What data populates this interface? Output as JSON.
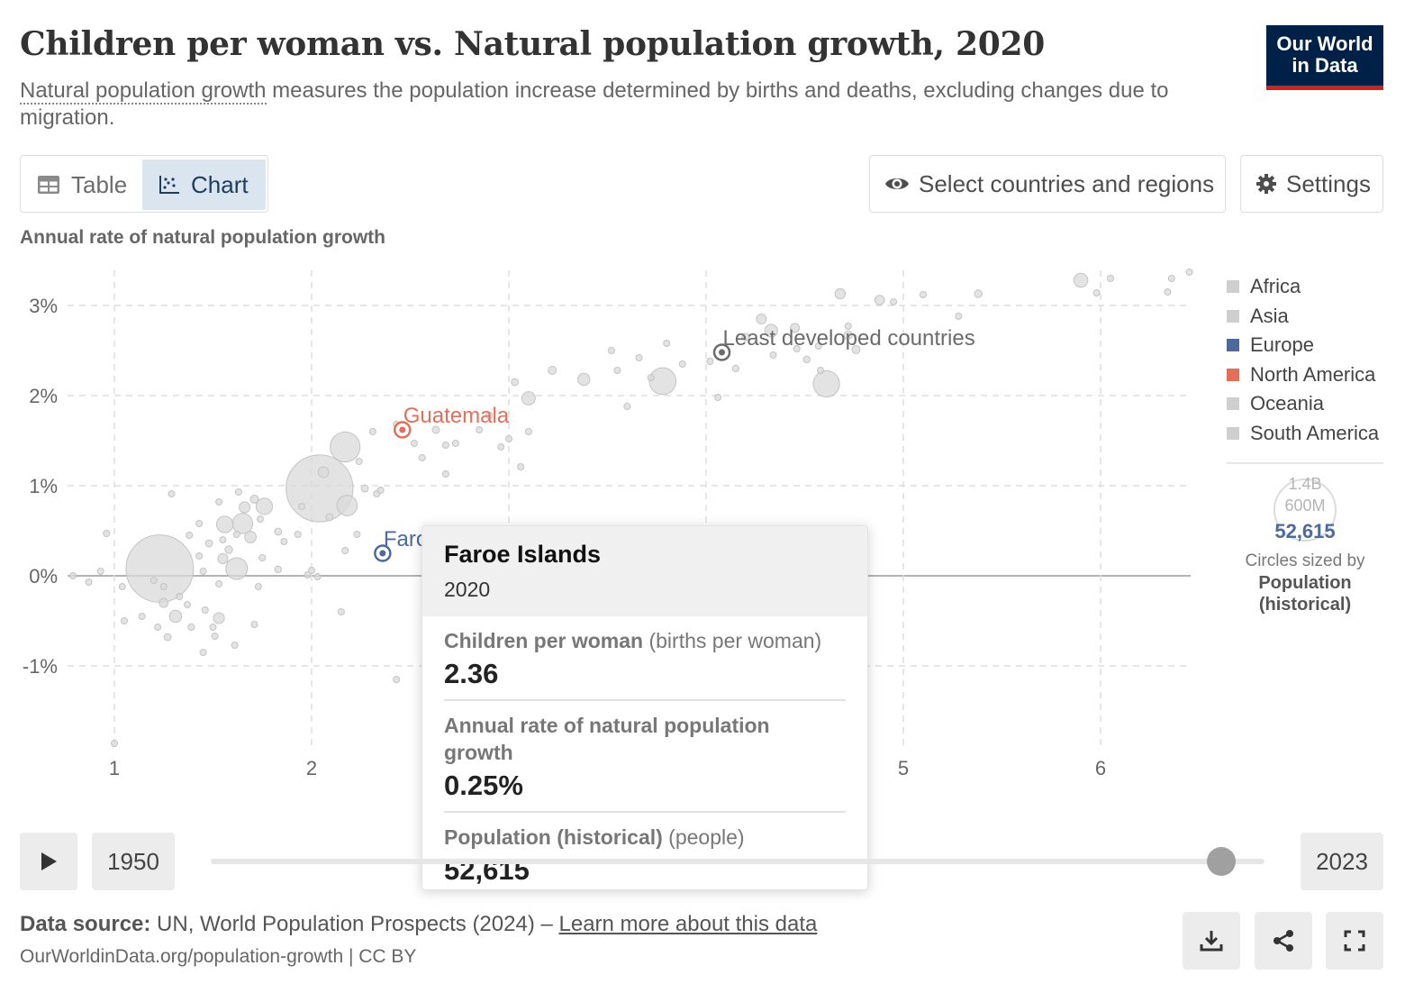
{
  "header": {
    "title": "Children per woman vs. Natural population growth, 2020",
    "subtitle_term": "Natural population growth",
    "subtitle_rest": " measures the population increase determined by births and deaths, excluding changes due to migration.",
    "logo_line1": "Our World",
    "logo_line2": "in Data"
  },
  "controls": {
    "tab_table": "Table",
    "tab_chart": "Chart",
    "select_button": "Select countries and regions",
    "settings_button": "Settings"
  },
  "legend": {
    "items": [
      {
        "label": "Africa",
        "color": "#cfcfcf"
      },
      {
        "label": "Asia",
        "color": "#cfcfcf"
      },
      {
        "label": "Europe",
        "color": "#4c6a9c"
      },
      {
        "label": "North America",
        "color": "#e56e5a"
      },
      {
        "label": "Oceania",
        "color": "#cfcfcf"
      },
      {
        "label": "South America",
        "color": "#cfcfcf"
      }
    ],
    "size_label_big": "1.4B",
    "size_label_small": "600M",
    "size_highlight": "52,615",
    "size_note": "Circles sized by",
    "size_variable": "Population (historical)"
  },
  "tooltip": {
    "entity": "Faroe Islands",
    "year": "2020",
    "rows": [
      {
        "name": "Children per woman",
        "unit": " (births per woman)",
        "value": "2.36"
      },
      {
        "name": "Annual rate of natural population growth",
        "unit": "",
        "value": "0.25%"
      },
      {
        "name": "Population (historical)",
        "unit": " (people)",
        "value": "52,615"
      }
    ]
  },
  "timeline": {
    "start_year": "1950",
    "end_year": "2023",
    "position": 1.0
  },
  "footer": {
    "source_label": "Data source:",
    "source_text": " UN, World Population Prospects (2024) – ",
    "source_link": "Learn more about this data",
    "url": "OurWorldinData.org/population-growth | CC BY"
  },
  "chart_data": {
    "type": "scatter",
    "title": "Children per woman vs. Natural population growth, 2020",
    "xlabel": "",
    "ylabel": "Annual rate of natural population growth",
    "xlim": [
      0.75,
      6.5
    ],
    "ylim": [
      -1.9,
      3.4
    ],
    "x_ticks": [
      "1",
      "2",
      "5",
      "6"
    ],
    "x_tick_values": [
      1,
      2,
      5,
      6
    ],
    "y_ticks": [
      "3%",
      "2%",
      "1%",
      "0%",
      "-1%"
    ],
    "y_tick_values": [
      3,
      2,
      1,
      0,
      -1
    ],
    "grid": true,
    "legend_position": "right",
    "highlighted": [
      {
        "label": "Guatemala",
        "x": 2.46,
        "y": 1.62,
        "color": "#e56e5a"
      },
      {
        "label": "Least developed countries",
        "x": 4.08,
        "y": 2.48,
        "color": "#6b6b6b"
      },
      {
        "label": "Faro",
        "x": 2.36,
        "y": 0.25,
        "color": "#4c6a9c"
      }
    ],
    "points": [
      [
        1.23,
        0.08,
        1400
      ],
      [
        2.04,
        0.97,
        1380
      ],
      [
        1.62,
        0.08,
        145
      ],
      [
        1.56,
        0.57,
        84
      ],
      [
        2.18,
        0.78,
        128
      ],
      [
        1.76,
        0.77,
        83
      ],
      [
        1.65,
        0.58,
        126
      ],
      [
        2.17,
        1.43,
        275
      ],
      [
        4.61,
        2.13,
        213
      ],
      [
        3.78,
        2.16,
        220
      ],
      [
        1.53,
        -0.47,
        37
      ],
      [
        1.31,
        -0.45,
        45
      ],
      [
        1.25,
        -0.3,
        25
      ],
      [
        1.69,
        0.43,
        40
      ],
      [
        1.66,
        0.76,
        36
      ],
      [
        1.55,
        0.19,
        31
      ],
      [
        5.9,
        3.28,
        60
      ],
      [
        2.06,
        1.15,
        35
      ],
      [
        1.71,
        0.85,
        20
      ],
      [
        1.48,
        0.36,
        16
      ],
      [
        1.58,
        0.29,
        18
      ],
      [
        2.73,
        1.47,
        12
      ],
      [
        3.38,
        2.18,
        45
      ],
      [
        3.1,
        1.97,
        55
      ],
      [
        4.33,
        2.72,
        50
      ],
      [
        4.68,
        3.13,
        33
      ],
      [
        4.88,
        3.06,
        28
      ],
      [
        4.76,
        2.51,
        20
      ],
      [
        5.38,
        3.13,
        18
      ],
      [
        6.05,
        3.3,
        10
      ],
      [
        4.28,
        2.85,
        30
      ],
      [
        4.45,
        2.75,
        25
      ],
      [
        3.52,
        2.5,
        12
      ],
      [
        3.03,
        2.15,
        15
      ],
      [
        2.9,
        1.78,
        14
      ],
      [
        2.52,
        1.47,
        10
      ],
      [
        2.43,
        1.68,
        8
      ],
      [
        2.31,
        1.6,
        11
      ],
      [
        3.22,
        2.28,
        20
      ],
      [
        3.66,
        2.42,
        10
      ],
      [
        3.8,
        2.58,
        10
      ],
      [
        4.15,
        2.3,
        13
      ],
      [
        4.2,
        2.65,
        17
      ],
      [
        4.34,
        2.45,
        12
      ],
      [
        4.72,
        2.67,
        22
      ],
      [
        4.51,
        2.4,
        14
      ],
      [
        4.58,
        2.28,
        10
      ],
      [
        5.1,
        3.12,
        9
      ],
      [
        1.05,
        -0.5,
        10
      ],
      [
        1.04,
        -0.12,
        8
      ],
      [
        0.96,
        0.47,
        6
      ],
      [
        0.79,
        0.0,
        10
      ],
      [
        0.87,
        -0.07,
        12
      ],
      [
        0.93,
        0.05,
        8
      ],
      [
        1.38,
        0.45,
        11
      ],
      [
        1.43,
        0.22,
        12
      ],
      [
        1.75,
        0.2,
        13
      ],
      [
        1.83,
        0.49,
        15
      ],
      [
        1.93,
        0.46,
        12
      ],
      [
        1.83,
        0.07,
        14
      ],
      [
        1.98,
        0.01,
        10
      ],
      [
        1.39,
        -0.57,
        13
      ],
      [
        1.27,
        -0.68,
        15
      ],
      [
        1.51,
        -0.67,
        10
      ],
      [
        1.45,
        0.05,
        10
      ],
      [
        1.95,
        0.77,
        10
      ],
      [
        2.09,
        0.65,
        15
      ],
      [
        2.27,
        0.97,
        15
      ],
      [
        2.24,
        1.27,
        12
      ],
      [
        2.63,
        1.62,
        16
      ],
      [
        2.85,
        1.62,
        12
      ],
      [
        2.96,
        1.43,
        11
      ],
      [
        3.06,
        1.21,
        10
      ],
      [
        2.36,
        0.25,
        7
      ],
      [
        2.43,
        -1.15,
        6
      ],
      [
        1.0,
        -1.86,
        6
      ],
      [
        1.29,
        0.91,
        6
      ],
      [
        1.53,
        0.82,
        6
      ],
      [
        1.63,
        0.93,
        6
      ],
      [
        2.56,
        1.31,
        10
      ],
      [
        2.68,
        1.13,
        8
      ],
      [
        1.43,
        0.58,
        8
      ],
      [
        1.5,
        -0.57,
        8
      ],
      [
        1.22,
        -0.57,
        6
      ],
      [
        1.61,
        -0.77,
        6
      ],
      [
        1.46,
        -0.38,
        6
      ],
      [
        1.33,
        -0.23,
        7
      ],
      [
        1.14,
        -0.45,
        7
      ],
      [
        1.53,
        -0.09,
        9
      ],
      [
        1.71,
        -0.54,
        9
      ],
      [
        1.73,
        -0.12,
        7
      ],
      [
        1.86,
        0.38,
        8
      ],
      [
        2.15,
        -0.4,
        7
      ],
      [
        2.17,
        0.28,
        8
      ],
      [
        2.35,
        0.95,
        7
      ],
      [
        2.0,
        0.06,
        8
      ],
      [
        2.03,
        -0.01,
        10
      ],
      [
        2.23,
        0.46,
        10
      ],
      [
        2.33,
        0.91,
        8
      ],
      [
        2.68,
        1.45,
        9
      ],
      [
        3.6,
        1.88,
        12
      ],
      [
        3.1,
        1.6,
        11
      ],
      [
        3.0,
        1.52,
        9
      ],
      [
        3.55,
        2.28,
        8
      ],
      [
        3.72,
        2.2,
        9
      ],
      [
        3.88,
        2.35,
        10
      ],
      [
        4.02,
        2.38,
        9
      ],
      [
        4.57,
        2.55,
        10
      ],
      [
        4.46,
        2.52,
        11
      ],
      [
        4.72,
        2.77,
        12
      ],
      [
        4.06,
        1.98,
        8
      ],
      [
        4.95,
        3.04,
        9
      ],
      [
        5.28,
        2.88,
        10
      ],
      [
        5.98,
        3.14,
        8
      ],
      [
        6.36,
        3.3,
        8
      ],
      [
        6.45,
        3.37,
        8
      ],
      [
        6.34,
        3.15,
        9
      ],
      [
        1.45,
        -0.85,
        6
      ],
      [
        1.55,
        0.4,
        10
      ],
      [
        1.62,
        0.46,
        12
      ],
      [
        1.74,
        0.63,
        9
      ],
      [
        1.25,
        -0.12,
        9
      ],
      [
        1.37,
        -0.32,
        11
      ],
      [
        1.2,
        -0.05,
        10
      ]
    ]
  }
}
